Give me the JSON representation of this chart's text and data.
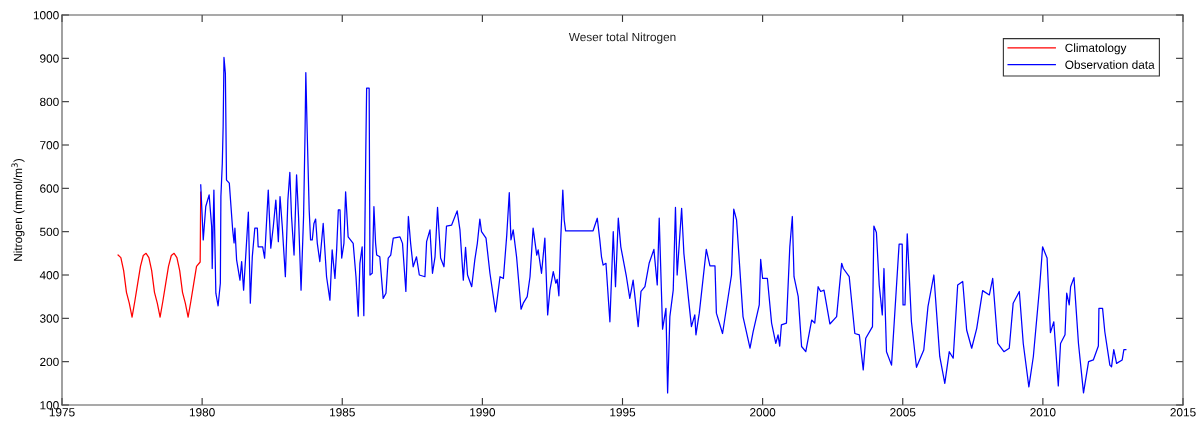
{
  "chart_data": {
    "type": "line",
    "title": "Weser total Nitrogen",
    "ylabel": "Nitrogen (mmol/m$^{3}$)",
    "xlim": [
      1975,
      2015
    ],
    "xticks": [
      1975,
      1980,
      1985,
      1990,
      1995,
      2000,
      2005,
      2010,
      2015
    ],
    "ylim": [
      100,
      1000
    ],
    "yticks": [
      100,
      200,
      300,
      400,
      500,
      600,
      700,
      800,
      900,
      1000
    ],
    "grid": false,
    "legend": "top right",
    "marker": "none",
    "line_style": "solid",
    "series": [
      {
        "name": "Climatology",
        "color": "#ff0000",
        "x": [
          1977.0,
          1977.1,
          1977.2,
          1977.3,
          1977.4,
          1977.5,
          1977.6,
          1977.7,
          1977.8,
          1977.9,
          1978.0,
          1978.1,
          1978.2,
          1978.3,
          1978.4,
          1978.5,
          1978.6,
          1978.7,
          1978.8,
          1978.9,
          1979.0,
          1979.1,
          1979.2,
          1979.3,
          1979.4,
          1979.5,
          1979.6,
          1979.7,
          1979.8,
          1979.93,
          1979.95
        ],
        "values": [
          446,
          440,
          410,
          360,
          335,
          303,
          340,
          380,
          420,
          445,
          450,
          440,
          410,
          360,
          335,
          303,
          340,
          380,
          420,
          445,
          450,
          440,
          410,
          360,
          335,
          303,
          340,
          380,
          420,
          430,
          591
        ]
      },
      {
        "name": "Observation data",
        "color": "#0000ff",
        "x": [
          1979.95,
          1980.04,
          1980.13,
          1980.25,
          1980.34,
          1980.36,
          1980.42,
          1980.49,
          1980.57,
          1980.65,
          1980.67,
          1980.72,
          1980.75,
          1980.78,
          1980.83,
          1980.87,
          1980.97,
          1981.09,
          1981.14,
          1981.17,
          1981.23,
          1981.35,
          1981.41,
          1981.48,
          1981.54,
          1981.65,
          1981.72,
          1981.79,
          1981.88,
          1981.97,
          1982.0,
          1982.16,
          1982.23,
          1982.36,
          1982.45,
          1982.54,
          1982.63,
          1982.72,
          1982.78,
          1982.86,
          1982.97,
          1983.06,
          1983.13,
          1983.19,
          1983.28,
          1983.37,
          1983.44,
          1983.53,
          1983.62,
          1983.67,
          1983.7,
          1983.75,
          1983.82,
          1983.87,
          1983.93,
          1983.99,
          1984.05,
          1984.11,
          1984.2,
          1984.32,
          1984.44,
          1984.56,
          1984.64,
          1984.74,
          1984.8,
          1984.86,
          1984.92,
          1984.98,
          1985.06,
          1985.12,
          1985.21,
          1985.39,
          1985.49,
          1985.57,
          1985.63,
          1985.71,
          1985.77,
          1985.84,
          1985.87,
          1985.96,
          1985.99,
          1986.07,
          1986.13,
          1986.19,
          1986.23,
          1986.34,
          1986.46,
          1986.56,
          1986.64,
          1986.73,
          1986.82,
          1987.06,
          1987.15,
          1987.27,
          1987.36,
          1987.44,
          1987.53,
          1987.65,
          1987.75,
          1987.95,
          1988.01,
          1988.13,
          1988.22,
          1988.31,
          1988.4,
          1988.51,
          1988.63,
          1988.72,
          1988.9,
          1989.1,
          1989.2,
          1989.32,
          1989.4,
          1989.47,
          1989.62,
          1989.73,
          1989.82,
          1989.91,
          1989.97,
          1990.13,
          1990.27,
          1990.47,
          1990.63,
          1990.75,
          1990.87,
          1990.96,
          1991.02,
          1991.1,
          1991.22,
          1991.38,
          1991.46,
          1991.6,
          1991.7,
          1991.81,
          1991.94,
          1991.99,
          1992.11,
          1992.23,
          1992.33,
          1992.41,
          1992.53,
          1992.62,
          1992.67,
          1992.73,
          1992.79,
          1992.87,
          1992.92,
          1992.97,
          1993.95,
          1994.1,
          1994.19,
          1994.25,
          1994.31,
          1994.41,
          1994.55,
          1994.67,
          1994.75,
          1994.85,
          1994.94,
          1995.14,
          1995.26,
          1995.38,
          1995.56,
          1995.66,
          1995.8,
          1995.95,
          1996.12,
          1996.24,
          1996.31,
          1996.43,
          1996.55,
          1996.61,
          1996.69,
          1996.81,
          1996.89,
          1996.95,
          1997.11,
          1997.19,
          1997.34,
          1997.46,
          1997.58,
          1997.62,
          1997.74,
          1997.99,
          1998.12,
          1998.3,
          1998.35,
          1998.57,
          1998.89,
          1998.97,
          1999.07,
          1999.3,
          1999.55,
          1999.66,
          1999.88,
          1999.93,
          2000.0,
          2000.17,
          2000.32,
          2000.47,
          2000.55,
          2000.61,
          2000.67,
          2000.85,
          2000.97,
          2001.06,
          2001.12,
          2001.27,
          2001.39,
          2001.54,
          2001.75,
          2001.86,
          2001.98,
          2002.07,
          2002.19,
          2002.4,
          2002.64,
          2002.82,
          2002.88,
          2003.09,
          2003.29,
          2003.45,
          2003.59,
          2003.68,
          2003.92,
          2003.97,
          2004.06,
          2004.16,
          2004.27,
          2004.33,
          2004.42,
          2004.6,
          2004.87,
          2004.98,
          2005.01,
          2005.08,
          2005.16,
          2005.31,
          2005.49,
          2005.75,
          2005.9,
          2006.11,
          2006.32,
          2006.5,
          2006.66,
          2006.8,
          2006.96,
          2007.14,
          2007.28,
          2007.46,
          2007.64,
          2007.85,
          2008.09,
          2008.21,
          2008.39,
          2008.61,
          2008.8,
          2008.94,
          2009.16,
          2009.3,
          2009.5,
          2009.66,
          2009.89,
          2009.99,
          2010.15,
          2010.27,
          2010.39,
          2010.55,
          2010.63,
          2010.79,
          2010.85,
          2010.94,
          2010.99,
          2011.11,
          2011.27,
          2011.45,
          2011.63,
          2011.8,
          2011.98,
          2012.0,
          2012.13,
          2012.21,
          2012.39,
          2012.45,
          2012.53,
          2012.63,
          2012.83,
          2012.89,
          2012.96
        ],
        "values": [
          608,
          481,
          558,
          585,
          512,
          415,
          596,
          358,
          329,
          381,
          581,
          658,
          742,
          902,
          865,
          619,
          612,
          504,
          474,
          508,
          435,
          388,
          431,
          365,
          427,
          545,
          335,
          442,
          508,
          508,
          465,
          465,
          439,
          596,
          462,
          512,
          573,
          477,
          581,
          512,
          396,
          573,
          637,
          535,
          446,
          631,
          535,
          365,
          535,
          719,
          867,
          727,
          550,
          481,
          481,
          519,
          529,
          473,
          431,
          519,
          396,
          342,
          458,
          392,
          458,
          550,
          550,
          439,
          473,
          592,
          488,
          473,
          396,
          305,
          427,
          465,
          306,
          685,
          831,
          831,
          400,
          404,
          558,
          473,
          446,
          442,
          346,
          358,
          439,
          446,
          485,
          488,
          473,
          362,
          535,
          473,
          419,
          442,
          400,
          396,
          477,
          504,
          404,
          442,
          556,
          439,
          419,
          513,
          515,
          548,
          504,
          388,
          464,
          400,
          373,
          435,
          473,
          529,
          500,
          485,
          404,
          315,
          396,
          392,
          492,
          590,
          481,
          504,
          442,
          321,
          335,
          350,
          396,
          508,
          446,
          458,
          404,
          485,
          308,
          365,
          408,
          381,
          390,
          352,
          473,
          596,
          527,
          502,
          502,
          531,
          481,
          442,
          423,
          427,
          292,
          500,
          373,
          531,
          465,
          396,
          346,
          388,
          281,
          362,
          373,
          427,
          459,
          377,
          531,
          275,
          323,
          128,
          304,
          365,
          556,
          400,
          554,
          450,
          354,
          281,
          308,
          262,
          312,
          459,
          421,
          421,
          312,
          265,
          400,
          552,
          527,
          304,
          231,
          269,
          331,
          436,
          392,
          392,
          289,
          242,
          262,
          236,
          285,
          289,
          465,
          535,
          396,
          350,
          235,
          223,
          296,
          289,
          373,
          362,
          365,
          287,
          304,
          427,
          415,
          396,
          265,
          262,
          181,
          254,
          281,
          513,
          498,
          377,
          308,
          415,
          223,
          192,
          471,
          471,
          331,
          331,
          495,
          292,
          187,
          227,
          327,
          400,
          212,
          150,
          223,
          208,
          377,
          385,
          273,
          231,
          277,
          364,
          354,
          392,
          242,
          223,
          231,
          335,
          362,
          242,
          142,
          212,
          377,
          465,
          439,
          267,
          292,
          144,
          242,
          262,
          358,
          331,
          373,
          394,
          242,
          128,
          200,
          204,
          236,
          323,
          323,
          269,
          192,
          188,
          228,
          196,
          204,
          228,
          228
        ]
      }
    ]
  }
}
